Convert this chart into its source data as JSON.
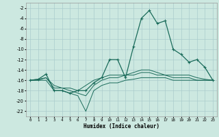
{
  "xlabel": "Humidex (Indice chaleur)",
  "xlim": [
    -0.5,
    23.5
  ],
  "ylim": [
    -23,
    -1
  ],
  "yticks": [
    -22,
    -20,
    -18,
    -16,
    -14,
    -12,
    -10,
    -8,
    -6,
    -4,
    -2
  ],
  "xticks": [
    0,
    1,
    2,
    3,
    4,
    5,
    6,
    7,
    8,
    9,
    10,
    11,
    12,
    13,
    14,
    15,
    16,
    17,
    18,
    19,
    20,
    21,
    22,
    23
  ],
  "bg_color": "#cce8e0",
  "grid_color": "#aacccc",
  "line_color": "#1a6b5a",
  "series1_y": [
    -16,
    -15.8,
    -14.8,
    -18,
    -18,
    -18.5,
    -18,
    -18,
    -16.5,
    -15.5,
    -12,
    -12,
    -15.5,
    -9.5,
    -4,
    -2.5,
    -5,
    -4.5,
    -10,
    -11,
    -12.5,
    -12,
    -13.5,
    -16
  ],
  "series2_y": [
    -16,
    -16,
    -15.5,
    -17,
    -17.5,
    -17.5,
    -18,
    -17,
    -16,
    -15.5,
    -15,
    -15,
    -15,
    -14.5,
    -14,
    -14,
    -14.5,
    -15,
    -15,
    -15,
    -15,
    -15.5,
    -15.8,
    -16
  ],
  "series3_y": [
    -16,
    -15.8,
    -15.5,
    -17.5,
    -17.5,
    -18,
    -18.5,
    -19,
    -17,
    -16,
    -15.5,
    -15.5,
    -15,
    -15,
    -14.5,
    -14.5,
    -15,
    -15,
    -15.5,
    -15.5,
    -15.5,
    -16,
    -16,
    -16
  ],
  "series4_y": [
    -16,
    -16,
    -16,
    -18,
    -18,
    -18.5,
    -19,
    -22,
    -18,
    -17,
    -16.5,
    -16.5,
    -16,
    -15.8,
    -15.5,
    -15.5,
    -15.5,
    -15.5,
    -16,
    -16,
    -16,
    -16,
    -16,
    -16
  ]
}
